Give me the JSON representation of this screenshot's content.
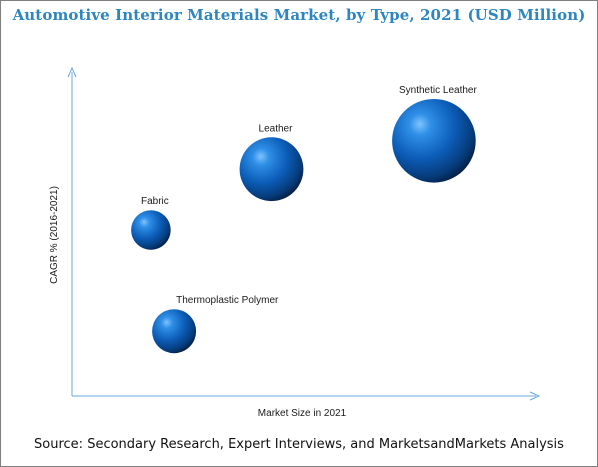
{
  "chart_data": {
    "type": "scatter",
    "title": "Automotive Interior Materials Market, by Type, 2021 (USD Million)",
    "xlabel": "Market Size in 2021",
    "ylabel": "CAGR % (2016-2021)",
    "series": [
      {
        "name": "Fabric",
        "x": 1.7,
        "y": 4.1,
        "size": 0.9
      },
      {
        "name": "Leather",
        "x": 4.3,
        "y": 5.6,
        "size": 1.45
      },
      {
        "name": "Synthetic Leather",
        "x": 7.8,
        "y": 6.3,
        "size": 1.9
      },
      {
        "name": "Thermoplastic Polymer",
        "x": 2.2,
        "y": 1.6,
        "size": 1.0
      }
    ],
    "xlim": [
      0,
      10
    ],
    "ylim": [
      0,
      8
    ],
    "grid": false,
    "bubble_color": "#1565c0"
  },
  "source": "Source: Secondary Research, Expert Interviews, and MarketsandMarkets Analysis"
}
